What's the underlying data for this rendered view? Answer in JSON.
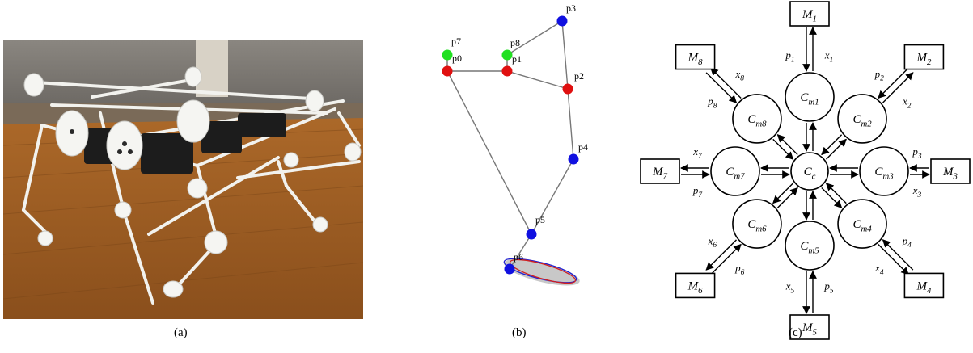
{
  "captions": {
    "a": "(a)",
    "b": "(b)",
    "c": "(c)"
  },
  "panel_b": {
    "points": [
      {
        "label": "p0",
        "color": "#e01010"
      },
      {
        "label": "p1",
        "color": "#e01010"
      },
      {
        "label": "p2",
        "color": "#e01010"
      },
      {
        "label": "p3",
        "color": "#1010e0"
      },
      {
        "label": "p4",
        "color": "#1010e0"
      },
      {
        "label": "p5",
        "color": "#1010e0"
      },
      {
        "label": "p6",
        "color": "#1010e0"
      },
      {
        "label": "p7",
        "color": "#20e020"
      },
      {
        "label": "p8",
        "color": "#20e020"
      }
    ]
  },
  "panel_c": {
    "center": {
      "label": "C",
      "sub": "c"
    },
    "modules": [
      {
        "m": "M",
        "msub": "1",
        "c": "C",
        "csub": "m1",
        "x": "x",
        "xsub": "1",
        "p": "p",
        "psub": "1"
      },
      {
        "m": "M",
        "msub": "2",
        "c": "C",
        "csub": "m2",
        "x": "x",
        "xsub": "2",
        "p": "p",
        "psub": "2"
      },
      {
        "m": "M",
        "msub": "3",
        "c": "C",
        "csub": "m3",
        "x": "x",
        "xsub": "3",
        "p": "p",
        "psub": "3"
      },
      {
        "m": "M",
        "msub": "4",
        "c": "C",
        "csub": "m4",
        "x": "x",
        "xsub": "4",
        "p": "p",
        "psub": "4"
      },
      {
        "m": "M",
        "msub": "5",
        "c": "C",
        "csub": "m5",
        "x": "x",
        "xsub": "5",
        "p": "p",
        "psub": "5"
      },
      {
        "m": "M",
        "msub": "6",
        "c": "C",
        "csub": "m6",
        "x": "x",
        "xsub": "6",
        "p": "p",
        "psub": "6"
      },
      {
        "m": "M",
        "msub": "7",
        "c": "C",
        "csub": "m7",
        "x": "x",
        "xsub": "7",
        "p": "p",
        "psub": "7"
      },
      {
        "m": "M",
        "msub": "8",
        "c": "C",
        "csub": "m8",
        "x": "x",
        "xsub": "8",
        "p": "p",
        "psub": "8"
      }
    ]
  }
}
